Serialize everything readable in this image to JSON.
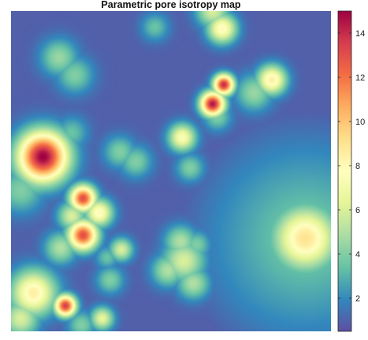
{
  "chart_data": {
    "type": "heatmap",
    "title": "Parametric pore isotropy map",
    "xlabel": "",
    "ylabel": "",
    "grid": false,
    "axes_visible": false,
    "colormap": "spectral (purple-blue-teal-green-yellow-orange-red)",
    "colormap_stops": [
      "#5E4FA2",
      "#3288BD",
      "#66C2A5",
      "#ABDDA4",
      "#E6F598",
      "#FFFFBF",
      "#FEE08B",
      "#FDAE61",
      "#F46D43",
      "#D53E4F",
      "#9E0142"
    ],
    "background_value": 0.9,
    "grid_size": [
      100,
      100
    ],
    "grid_coordinates": "x = column, y = row, 0-100 left to right, top to bottom",
    "hotspots": [
      {
        "x": 10,
        "y": 45.5,
        "peak": 15,
        "spread": 5.5
      },
      {
        "x": 6,
        "y": 42,
        "peak": 6,
        "spread": 4
      },
      {
        "x": 8,
        "y": 52,
        "peak": 5,
        "spread": 4
      },
      {
        "x": 3,
        "y": 56,
        "peak": 4,
        "spread": 5
      },
      {
        "x": 22.5,
        "y": 58.5,
        "peak": 13,
        "spread": 2.8
      },
      {
        "x": 22.5,
        "y": 70,
        "peak": 13,
        "spread": 3.2
      },
      {
        "x": 27.5,
        "y": 63,
        "peak": 8,
        "spread": 3
      },
      {
        "x": 19,
        "y": 64,
        "peak": 6,
        "spread": 3
      },
      {
        "x": 15.5,
        "y": 74,
        "peak": 5,
        "spread": 3.5
      },
      {
        "x": 7,
        "y": 88,
        "peak": 8.5,
        "spread": 5
      },
      {
        "x": 3,
        "y": 96,
        "peak": 6,
        "spread": 4
      },
      {
        "x": 17,
        "y": 92,
        "peak": 13.5,
        "spread": 2.3
      },
      {
        "x": 28.5,
        "y": 96,
        "peak": 6.5,
        "spread": 2.5
      },
      {
        "x": 22,
        "y": 98,
        "peak": 4,
        "spread": 3
      },
      {
        "x": 31,
        "y": 84,
        "peak": 4,
        "spread": 3
      },
      {
        "x": 34.5,
        "y": 74.5,
        "peak": 6,
        "spread": 2.5
      },
      {
        "x": 30,
        "y": 77,
        "peak": 3.5,
        "spread": 2.5
      },
      {
        "x": 63,
        "y": 29,
        "peak": 14.5,
        "spread": 2.6
      },
      {
        "x": 66.5,
        "y": 23,
        "peak": 14,
        "spread": 2.2
      },
      {
        "x": 64.5,
        "y": 33,
        "peak": 4,
        "spread": 3
      },
      {
        "x": 81.5,
        "y": 21.5,
        "peak": 8.5,
        "spread": 3.2
      },
      {
        "x": 76,
        "y": 25.5,
        "peak": 4.5,
        "spread": 4
      },
      {
        "x": 66,
        "y": 5.5,
        "peak": 8,
        "spread": 3.2
      },
      {
        "x": 63,
        "y": 0,
        "peak": 6,
        "spread": 3.5
      },
      {
        "x": 45,
        "y": 5,
        "peak": 3.5,
        "spread": 3
      },
      {
        "x": 15,
        "y": 14.5,
        "peak": 4.5,
        "spread": 4
      },
      {
        "x": 20,
        "y": 20,
        "peak": 4,
        "spread": 4
      },
      {
        "x": 53.5,
        "y": 39.5,
        "peak": 7.5,
        "spread": 3
      },
      {
        "x": 56,
        "y": 49,
        "peak": 4,
        "spread": 3
      },
      {
        "x": 34,
        "y": 44,
        "peak": 4,
        "spread": 3.5
      },
      {
        "x": 39,
        "y": 47,
        "peak": 4,
        "spread": 3.5
      },
      {
        "x": 19,
        "y": 38,
        "peak": 3.5,
        "spread": 3.5
      },
      {
        "x": 54,
        "y": 78,
        "peak": 6,
        "spread": 4.5
      },
      {
        "x": 53,
        "y": 72,
        "peak": 5,
        "spread": 3.5
      },
      {
        "x": 57,
        "y": 85,
        "peak": 5,
        "spread": 3.5
      },
      {
        "x": 49,
        "y": 81,
        "peak": 5,
        "spread": 3.5
      },
      {
        "x": 58,
        "y": 73,
        "peak": 4,
        "spread": 3
      }
    ],
    "diffuse_region": {
      "x": 92,
      "y": 71,
      "peak": 9,
      "spread": 7,
      "falloff_value": 4.2,
      "falloff_radius": 40
    },
    "colorbar": {
      "min": 0.5,
      "max": 15,
      "ticks": [
        2,
        4,
        6,
        8,
        10,
        12,
        14
      ],
      "tick_labels": [
        "2",
        "4",
        "6",
        "8",
        "10",
        "12",
        "14"
      ]
    }
  }
}
